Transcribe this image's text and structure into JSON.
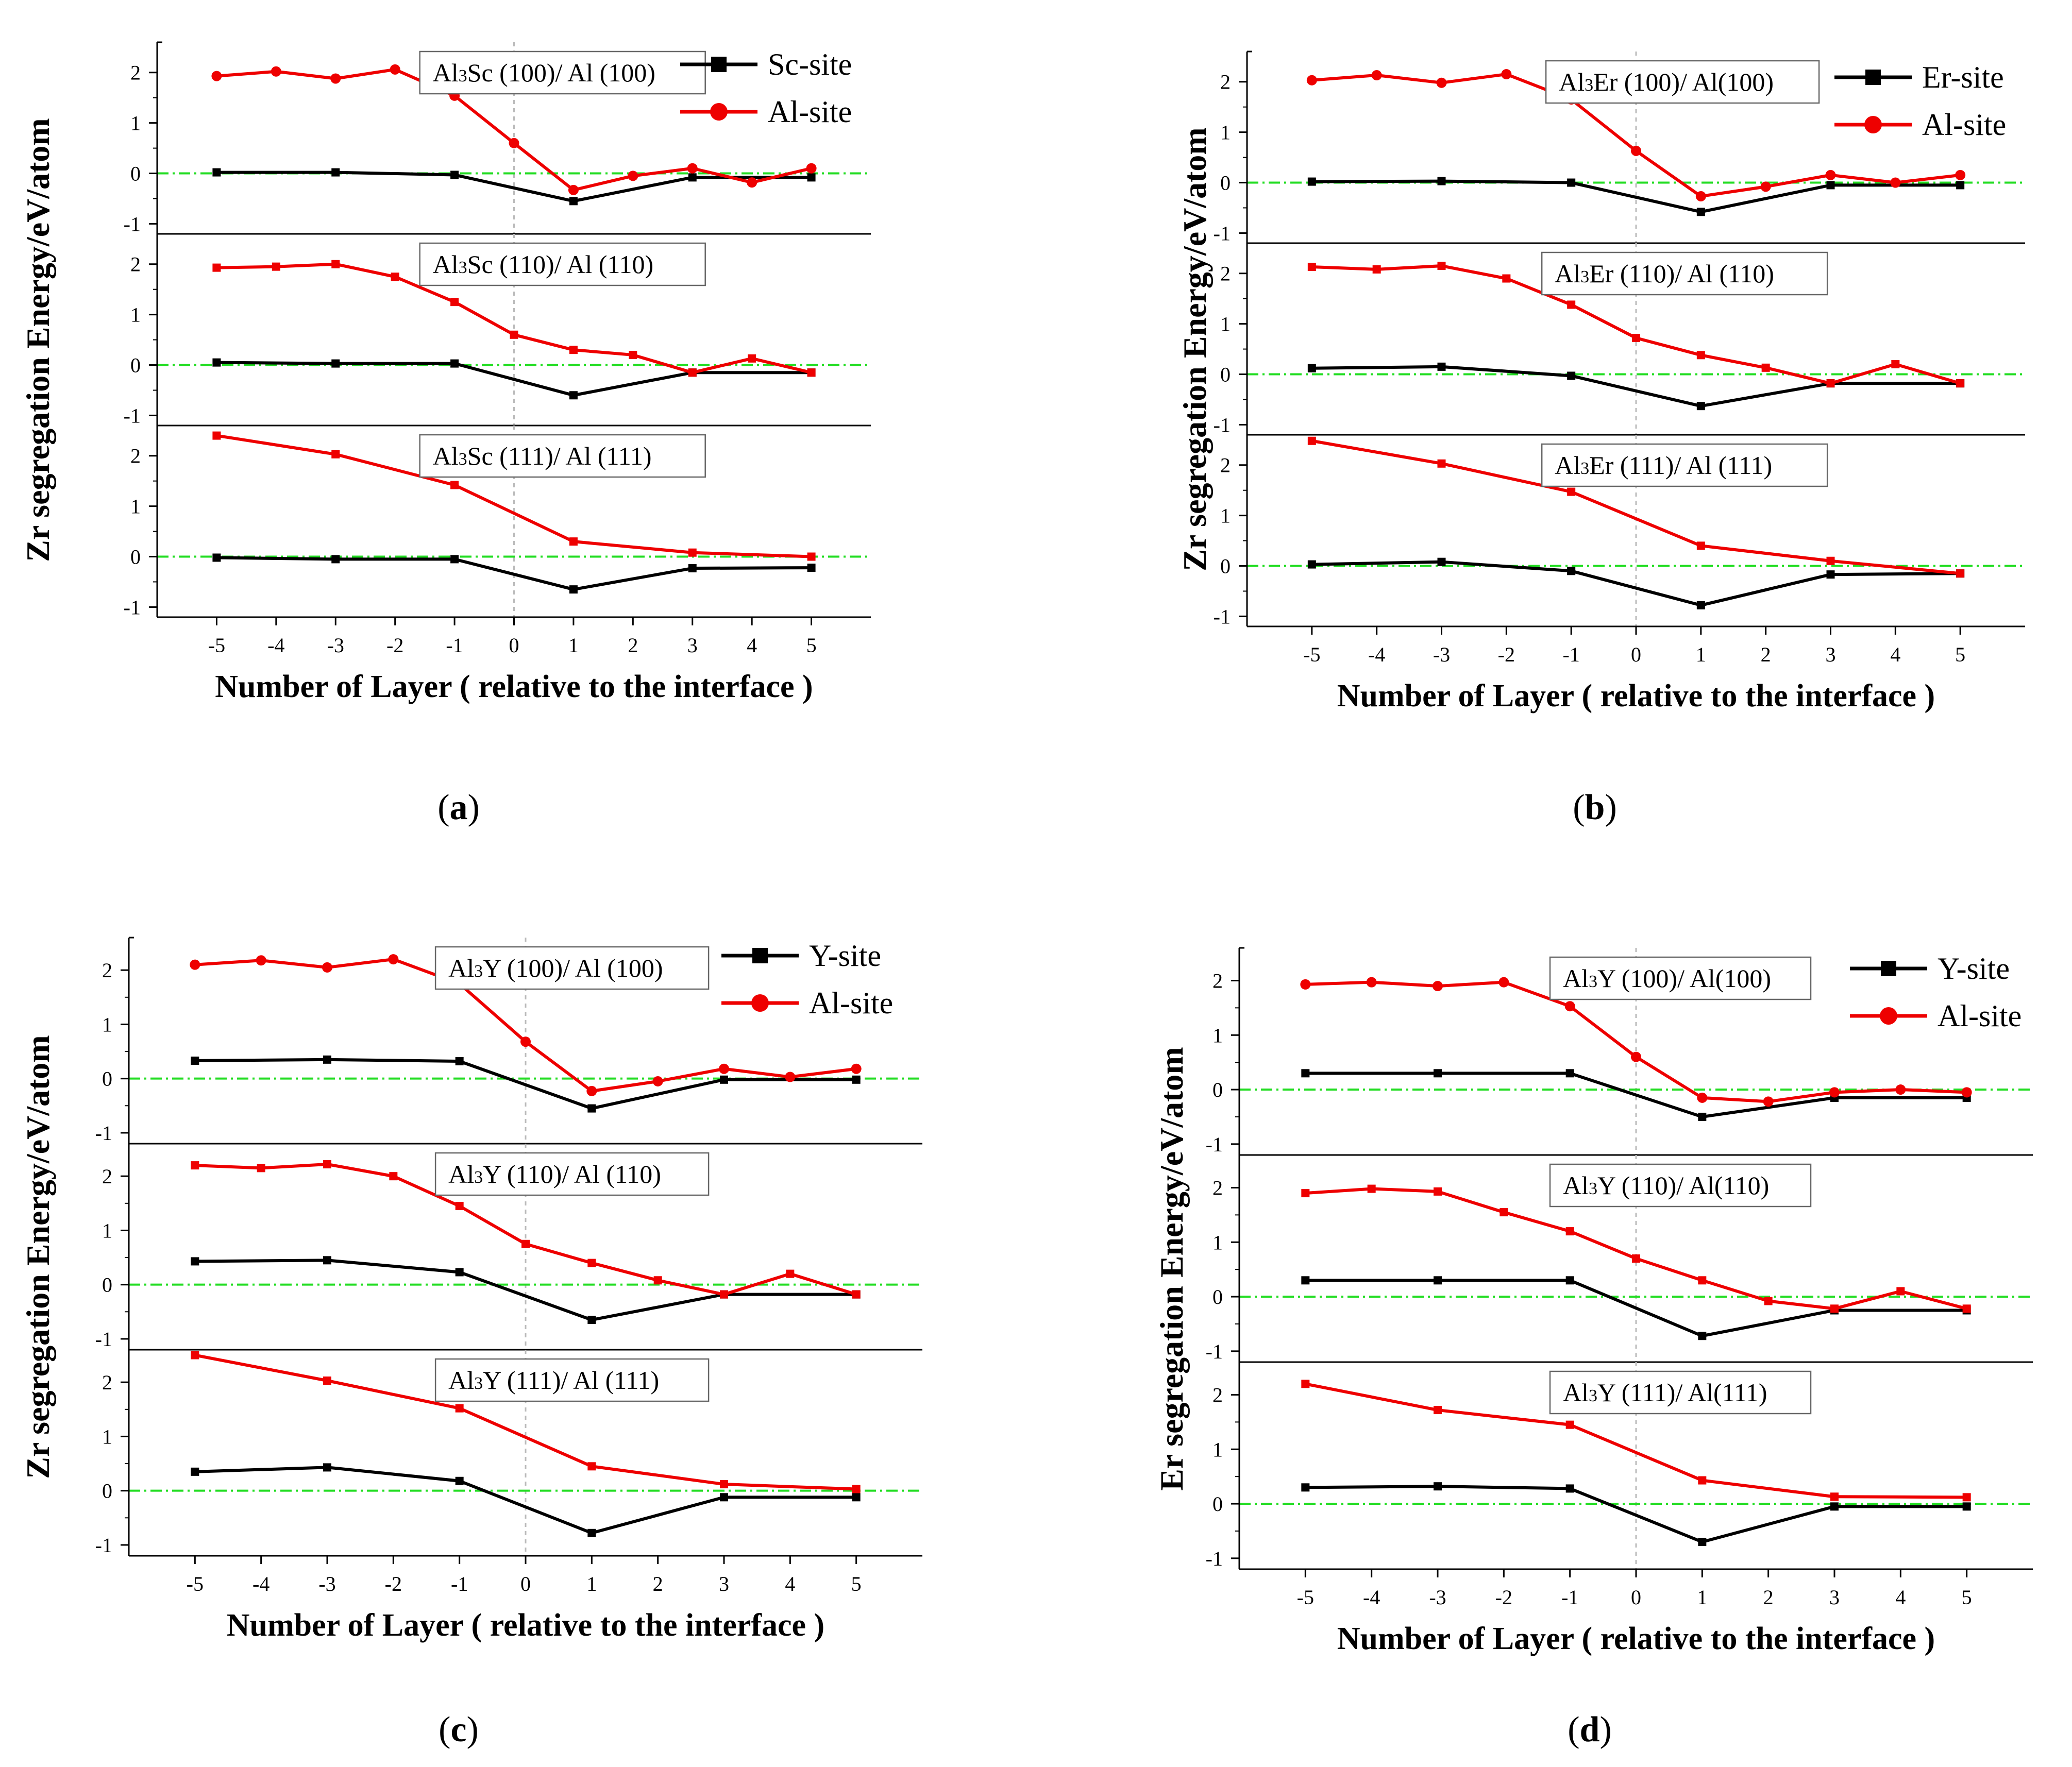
{
  "panels": [
    {
      "letter": "a",
      "ylabel": "Zr segregation Energy/eV/atom",
      "xlabel": "Number of Layer ( relative to the interface )",
      "legend": [
        {
          "name": "Sc-site",
          "color": "#000000",
          "marker": "square"
        },
        {
          "name": "Al-site",
          "color": "#ee0000",
          "marker": "circle"
        }
      ],
      "subplots": [
        {
          "title": "Al3Sc (100)/ Al (100)",
          "title_sub": [
            "Al",
            "3",
            "Sc (100)/ Al (100)"
          ],
          "series": [
            {
              "name": "Sc-site",
              "x": [
                -5,
                -3,
                -1,
                1,
                3,
                5
              ],
              "y": [
                0.02,
                0.02,
                -0.03,
                -0.55,
                -0.08,
                -0.08
              ]
            },
            {
              "name": "Al-site",
              "x": [
                -5,
                -4,
                -3,
                -2,
                -1,
                0,
                1,
                2,
                3,
                4,
                5
              ],
              "y": [
                1.93,
                2.02,
                1.88,
                2.06,
                1.54,
                0.6,
                -0.33,
                -0.05,
                0.1,
                -0.18,
                0.1
              ]
            }
          ]
        },
        {
          "title": "Al3Sc (110)/ Al (110)",
          "title_sub": [
            "Al",
            "3",
            "Sc (110)/ Al (110)"
          ],
          "series": [
            {
              "name": "Sc-site",
              "x": [
                -5,
                -3,
                -1,
                1,
                3,
                5
              ],
              "y": [
                0.05,
                0.03,
                0.03,
                -0.6,
                -0.15,
                -0.15
              ]
            },
            {
              "name": "Al-site",
              "x": [
                -5,
                -4,
                -3,
                -2,
                -1,
                0,
                1,
                2,
                3,
                4,
                5
              ],
              "y": [
                1.93,
                1.95,
                2.0,
                1.75,
                1.25,
                0.6,
                0.3,
                0.2,
                -0.15,
                0.13,
                -0.15
              ]
            }
          ]
        },
        {
          "title": "Al3Sc (111)/ Al (111)",
          "title_sub": [
            "Al",
            "3",
            "Sc (111)/ Al (111)"
          ],
          "series": [
            {
              "name": "Sc-site",
              "x": [
                -5,
                -3,
                -1,
                1,
                3,
                5
              ],
              "y": [
                -0.02,
                -0.05,
                -0.05,
                -0.65,
                -0.23,
                -0.22
              ]
            },
            {
              "name": "Al-site",
              "x": [
                -5,
                -3,
                -1,
                1,
                3,
                5
              ],
              "y": [
                2.4,
                2.03,
                1.42,
                0.3,
                0.08,
                0.0
              ]
            }
          ]
        }
      ]
    },
    {
      "letter": "b",
      "ylabel": "Zr segregation Energy/eV/atom",
      "xlabel": "Number of Layer ( relative to the interface )",
      "legend": [
        {
          "name": "Er-site",
          "color": "#000000",
          "marker": "square"
        },
        {
          "name": "Al-site",
          "color": "#ee0000",
          "marker": "circle"
        }
      ],
      "subplots": [
        {
          "title": "Al3Er (100)/ Al(100)",
          "title_sub": [
            "Al",
            "3",
            "Er (100)/ Al(100)"
          ],
          "series": [
            {
              "name": "Er-site",
              "x": [
                -5,
                -3,
                -1,
                1,
                3,
                5
              ],
              "y": [
                0.02,
                0.03,
                0.0,
                -0.58,
                -0.05,
                -0.05
              ]
            },
            {
              "name": "Al-site",
              "x": [
                -5,
                -4,
                -3,
                -2,
                -1,
                0,
                1,
                2,
                3,
                4,
                5
              ],
              "y": [
                2.03,
                2.13,
                1.98,
                2.15,
                1.65,
                0.63,
                -0.27,
                -0.08,
                0.15,
                0.0,
                0.15
              ]
            }
          ]
        },
        {
          "title": "Al3Er (110)/ Al (110)",
          "title_sub": [
            "Al",
            "3",
            "Er (110)/ Al (110)"
          ],
          "series": [
            {
              "name": "Er-site",
              "x": [
                -5,
                -3,
                -1,
                1,
                3,
                5
              ],
              "y": [
                0.12,
                0.15,
                -0.03,
                -0.63,
                -0.18,
                -0.18
              ]
            },
            {
              "name": "Al-site",
              "x": [
                -5,
                -4,
                -3,
                -2,
                -1,
                0,
                1,
                2,
                3,
                4,
                5
              ],
              "y": [
                2.13,
                2.08,
                2.15,
                1.9,
                1.38,
                0.72,
                0.38,
                0.13,
                -0.18,
                0.2,
                -0.18
              ]
            }
          ]
        },
        {
          "title": "Al3Er (111)/ Al (111)",
          "title_sub": [
            "Al",
            "3",
            "Er (111)/ Al (111)"
          ],
          "series": [
            {
              "name": "Er-site",
              "x": [
                -5,
                -3,
                -1,
                1,
                3,
                5
              ],
              "y": [
                0.03,
                0.08,
                -0.1,
                -0.78,
                -0.17,
                -0.15
              ]
            },
            {
              "name": "Al-site",
              "x": [
                -5,
                -3,
                -1,
                1,
                3,
                5
              ],
              "y": [
                2.48,
                2.03,
                1.47,
                0.4,
                0.1,
                -0.15
              ]
            }
          ]
        }
      ]
    },
    {
      "letter": "c",
      "ylabel": "Zr segregation Energy/eV/atom",
      "xlabel": "Number of Layer ( relative to the interface )",
      "legend": [
        {
          "name": "Y-site",
          "color": "#000000",
          "marker": "square"
        },
        {
          "name": "Al-site",
          "color": "#ee0000",
          "marker": "circle"
        }
      ],
      "subplots": [
        {
          "title": "Al3Y (100)/ Al (100)",
          "title_sub": [
            "Al",
            "3",
            "Y (100)/ Al (100)"
          ],
          "series": [
            {
              "name": "Y-site",
              "x": [
                -5,
                -3,
                -1,
                1,
                3,
                5
              ],
              "y": [
                0.33,
                0.35,
                0.32,
                -0.55,
                -0.02,
                -0.02
              ]
            },
            {
              "name": "Al-site",
              "x": [
                -5,
                -4,
                -3,
                -2,
                -1,
                0,
                1,
                2,
                3,
                4,
                5
              ],
              "y": [
                2.1,
                2.18,
                2.05,
                2.2,
                1.75,
                0.68,
                -0.23,
                -0.05,
                0.18,
                0.03,
                0.18
              ]
            }
          ]
        },
        {
          "title": "Al3Y (110)/ Al (110)",
          "title_sub": [
            "Al",
            "3",
            "Y (110)/ Al (110)"
          ],
          "series": [
            {
              "name": "Y-site",
              "x": [
                -5,
                -3,
                -1,
                1,
                3,
                5
              ],
              "y": [
                0.43,
                0.45,
                0.23,
                -0.65,
                -0.18,
                -0.18
              ]
            },
            {
              "name": "Al-site",
              "x": [
                -5,
                -4,
                -3,
                -2,
                -1,
                0,
                1,
                2,
                3,
                4,
                5
              ],
              "y": [
                2.2,
                2.15,
                2.22,
                2.0,
                1.45,
                0.75,
                0.4,
                0.08,
                -0.18,
                0.2,
                -0.18
              ]
            }
          ]
        },
        {
          "title": "Al3Y (111)/ Al (111)",
          "title_sub": [
            "Al",
            "3",
            "Y (111)/ Al (111)"
          ],
          "series": [
            {
              "name": "Y-site",
              "x": [
                -5,
                -3,
                -1,
                1,
                3,
                5
              ],
              "y": [
                0.35,
                0.43,
                0.18,
                -0.78,
                -0.12,
                -0.12
              ]
            },
            {
              "name": "Al-site",
              "x": [
                -5,
                -3,
                -1,
                1,
                3,
                5
              ],
              "y": [
                2.5,
                2.03,
                1.52,
                0.45,
                0.12,
                0.03
              ]
            }
          ]
        }
      ]
    },
    {
      "letter": "d",
      "ylabel": "Er segregation Energy/eV/atom",
      "xlabel": "Number of Layer ( relative to the interface )",
      "legend": [
        {
          "name": "Y-site",
          "color": "#000000",
          "marker": "square"
        },
        {
          "name": "Al-site",
          "color": "#ee0000",
          "marker": "circle"
        }
      ],
      "subplots": [
        {
          "title": "Al3Y (100)/ Al(100)",
          "title_sub": [
            "Al",
            "3",
            "Y (100)/ Al(100)"
          ],
          "series": [
            {
              "name": "Y-site",
              "x": [
                -5,
                -3,
                -1,
                1,
                3,
                5
              ],
              "y": [
                0.3,
                0.3,
                0.3,
                -0.5,
                -0.15,
                -0.15
              ]
            },
            {
              "name": "Al-site",
              "x": [
                -5,
                -4,
                -3,
                -2,
                -1,
                0,
                1,
                2,
                3,
                4,
                5
              ],
              "y": [
                1.93,
                1.97,
                1.9,
                1.97,
                1.53,
                0.6,
                -0.15,
                -0.22,
                -0.05,
                0.0,
                -0.05
              ]
            }
          ]
        },
        {
          "title": "Al3Y (110)/ Al(110)",
          "title_sub": [
            "Al",
            "3",
            "Y (110)/ Al(110)"
          ],
          "series": [
            {
              "name": "Y-site",
              "x": [
                -5,
                -3,
                -1,
                1,
                3,
                5
              ],
              "y": [
                0.3,
                0.3,
                0.3,
                -0.72,
                -0.25,
                -0.25
              ]
            },
            {
              "name": "Al-site",
              "x": [
                -5,
                -4,
                -3,
                -2,
                -1,
                0,
                1,
                2,
                3,
                4,
                5
              ],
              "y": [
                1.9,
                1.98,
                1.93,
                1.55,
                1.2,
                0.7,
                0.3,
                -0.08,
                -0.22,
                0.1,
                -0.22
              ]
            }
          ]
        },
        {
          "title": "Al3Y (111)/ Al(111)",
          "title_sub": [
            "Al",
            "3",
            "Y (111)/ Al(111)"
          ],
          "series": [
            {
              "name": "Y-site",
              "x": [
                -5,
                -3,
                -1,
                1,
                3,
                5
              ],
              "y": [
                0.3,
                0.32,
                0.28,
                -0.7,
                -0.05,
                -0.05
              ]
            },
            {
              "name": "Al-site",
              "x": [
                -5,
                -3,
                -1,
                1,
                3,
                5
              ],
              "y": [
                2.2,
                1.72,
                1.45,
                0.43,
                0.13,
                0.12
              ]
            }
          ]
        }
      ]
    }
  ],
  "chart_data": [
    {
      "type": "line",
      "panel": "a",
      "x": [
        -5,
        -4,
        -3,
        -2,
        -1,
        0,
        1,
        2,
        3,
        4,
        5
      ],
      "xlim": [
        -6,
        6
      ],
      "ylim": [
        -1.2,
        2.6
      ],
      "xlabel": "Number of Layer ( relative to the interface )",
      "ylabel": "Zr segregation Energy/eV/atom",
      "legend": [
        "Sc-site",
        "Al-site"
      ],
      "legend_position": "top-right",
      "subplot_titles": [
        "Al3Sc (100)/ Al (100)",
        "Al3Sc (110)/ Al (110)",
        "Al3Sc (111)/ Al (111)"
      ]
    },
    {
      "type": "line",
      "panel": "b",
      "x": [
        -5,
        -4,
        -3,
        -2,
        -1,
        0,
        1,
        2,
        3,
        4,
        5
      ],
      "xlim": [
        -6,
        6
      ],
      "ylim": [
        -1.2,
        2.6
      ],
      "xlabel": "Number of Layer ( relative to the interface )",
      "ylabel": "Zr segregation Energy/eV/atom",
      "legend": [
        "Er-site",
        "Al-site"
      ],
      "legend_position": "top-right",
      "subplot_titles": [
        "Al3Er (100)/ Al(100)",
        "Al3Er (110)/ Al (110)",
        "Al3Er (111)/ Al (111)"
      ]
    },
    {
      "type": "line",
      "panel": "c",
      "x": [
        -5,
        -4,
        -3,
        -2,
        -1,
        0,
        1,
        2,
        3,
        4,
        5
      ],
      "xlim": [
        -6,
        6
      ],
      "ylim": [
        -1.2,
        2.6
      ],
      "xlabel": "Number of Layer ( relative to the interface )",
      "ylabel": "Zr segregation Energy/eV/atom",
      "legend": [
        "Y-site",
        "Al-site"
      ],
      "legend_position": "top-right",
      "subplot_titles": [
        "Al3Y (100)/ Al (100)",
        "Al3Y (110)/ Al (110)",
        "Al3Y (111)/ Al (111)"
      ]
    },
    {
      "type": "line",
      "panel": "d",
      "x": [
        -5,
        -4,
        -3,
        -2,
        -1,
        0,
        1,
        2,
        3,
        4,
        5
      ],
      "xlim": [
        -6,
        6
      ],
      "ylim": [
        -1.2,
        2.6
      ],
      "xlabel": "Number of Layer ( relative to the interface )",
      "ylabel": "Er segregation Energy/eV/atom",
      "legend": [
        "Y-site",
        "Al-site"
      ],
      "legend_position": "top-right",
      "subplot_titles": [
        "Al3Y (100)/ Al(100)",
        "Al3Y (110)/ Al(110)",
        "Al3Y (111)/ Al(111)"
      ]
    }
  ],
  "axis": {
    "xticks": [
      -5,
      -4,
      -3,
      -2,
      -1,
      0,
      1,
      2,
      3,
      4,
      5
    ],
    "yticks": [
      -1,
      0,
      1,
      2
    ],
    "xlim": [
      -6,
      6
    ],
    "ylim": [
      -1.2,
      2.6
    ],
    "zero_line_color": "#22dd22",
    "interface_line_color": "#bbbbbb"
  }
}
